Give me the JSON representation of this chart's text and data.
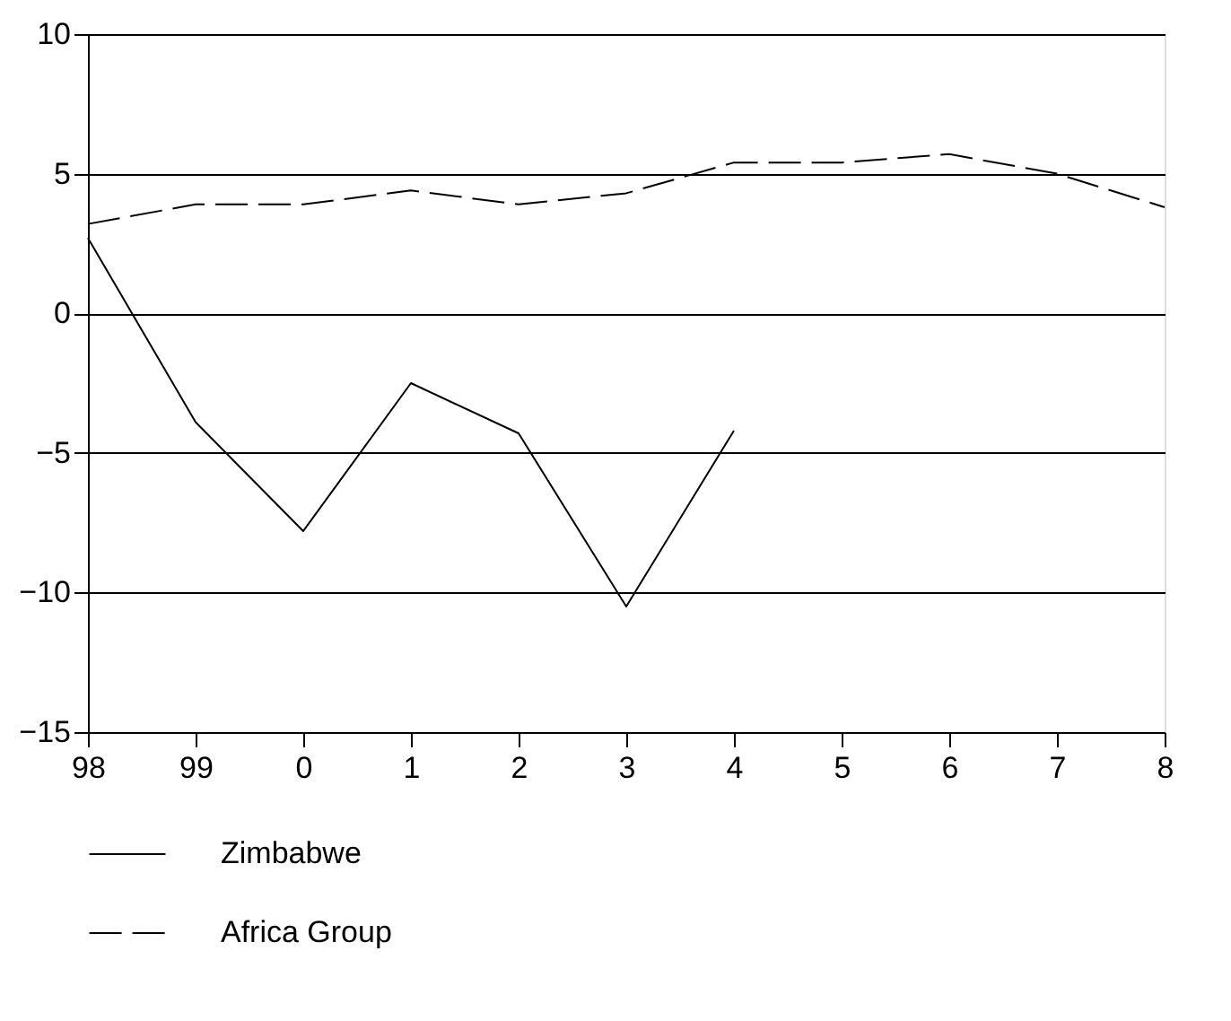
{
  "chart_data": {
    "type": "line",
    "categories": [
      "98",
      "99",
      "0",
      "1",
      "2",
      "3",
      "4",
      "5",
      "6",
      "7",
      "8"
    ],
    "series": [
      {
        "name": "Zimbabwe",
        "color": "#000000",
        "line_style": "solid",
        "values": [
          2.7,
          -3.9,
          -7.8,
          -2.5,
          -4.3,
          -10.5,
          -4.2,
          null,
          null,
          null,
          null
        ]
      },
      {
        "name": "Africa Group",
        "color": "#000000",
        "line_style": "dashed",
        "values": [
          3.2,
          3.9,
          3.9,
          4.4,
          3.9,
          4.3,
          5.4,
          5.4,
          5.7,
          5.0,
          3.8
        ]
      }
    ],
    "ylim": [
      -15,
      10
    ],
    "yticks": [
      -15,
      -10,
      -5,
      0,
      5,
      10
    ],
    "grid": "y",
    "legend": "bottom",
    "marker": "none"
  }
}
